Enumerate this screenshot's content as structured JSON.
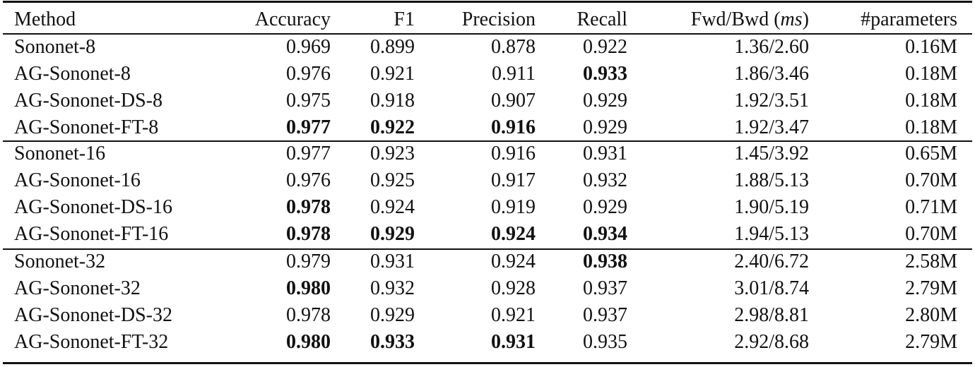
{
  "table": {
    "header": [
      "Method",
      "Accuracy",
      "F1",
      "Precision",
      "Recall",
      [
        {
          "text": "Fwd/Bwd ("
        },
        {
          "text": "ms",
          "italic": true
        },
        {
          "text": ")"
        }
      ],
      "#parameters"
    ],
    "groups": [
      {
        "rows": [
          {
            "cells": [
              "Sononet-8",
              "0.969",
              "0.899",
              "0.878",
              "0.922",
              "1.36/2.60",
              "0.16M"
            ],
            "bold": []
          },
          {
            "cells": [
              "AG-Sononet-8",
              "0.976",
              "0.921",
              "0.911",
              "0.933",
              "1.86/3.46",
              "0.18M"
            ],
            "bold": [
              4
            ]
          },
          {
            "cells": [
              "AG-Sononet-DS-8",
              "0.975",
              "0.918",
              "0.907",
              "0.929",
              "1.92/3.51",
              "0.18M"
            ],
            "bold": []
          },
          {
            "cells": [
              "AG-Sononet-FT-8",
              "0.977",
              "0.922",
              "0.916",
              "0.929",
              "1.92/3.47",
              "0.18M"
            ],
            "bold": [
              1,
              2,
              3
            ]
          }
        ]
      },
      {
        "rows": [
          {
            "cells": [
              "Sononet-16",
              "0.977",
              "0.923",
              "0.916",
              "0.931",
              "1.45/3.92",
              "0.65M"
            ],
            "bold": []
          },
          {
            "cells": [
              "AG-Sononet-16",
              "0.976",
              "0.925",
              "0.917",
              "0.932",
              "1.88/5.13",
              "0.70M"
            ],
            "bold": []
          },
          {
            "cells": [
              "AG-Sononet-DS-16",
              "0.978",
              "0.924",
              "0.919",
              "0.929",
              "1.90/5.19",
              "0.71M"
            ],
            "bold": [
              1
            ]
          },
          {
            "cells": [
              "AG-Sononet-FT-16",
              "0.978",
              "0.929",
              "0.924",
              "0.934",
              "1.94/5.13",
              "0.70M"
            ],
            "bold": [
              1,
              2,
              3,
              4
            ]
          }
        ]
      },
      {
        "rows": [
          {
            "cells": [
              "Sononet-32",
              "0.979",
              "0.931",
              "0.924",
              "0.938",
              "2.40/6.72",
              "2.58M"
            ],
            "bold": [
              4
            ]
          },
          {
            "cells": [
              "AG-Sononet-32",
              "0.980",
              "0.932",
              "0.928",
              "0.937",
              "3.01/8.74",
              "2.79M"
            ],
            "bold": [
              1
            ]
          },
          {
            "cells": [
              "AG-Sononet-DS-32",
              "0.978",
              "0.929",
              "0.921",
              "0.937",
              "2.98/8.81",
              "2.80M"
            ],
            "bold": []
          },
          {
            "cells": [
              "AG-Sononet-FT-32",
              "0.980",
              "0.933",
              "0.931",
              "0.935",
              "2.92/8.68",
              "2.79M"
            ],
            "bold": [
              1,
              2,
              3
            ]
          }
        ]
      }
    ]
  }
}
